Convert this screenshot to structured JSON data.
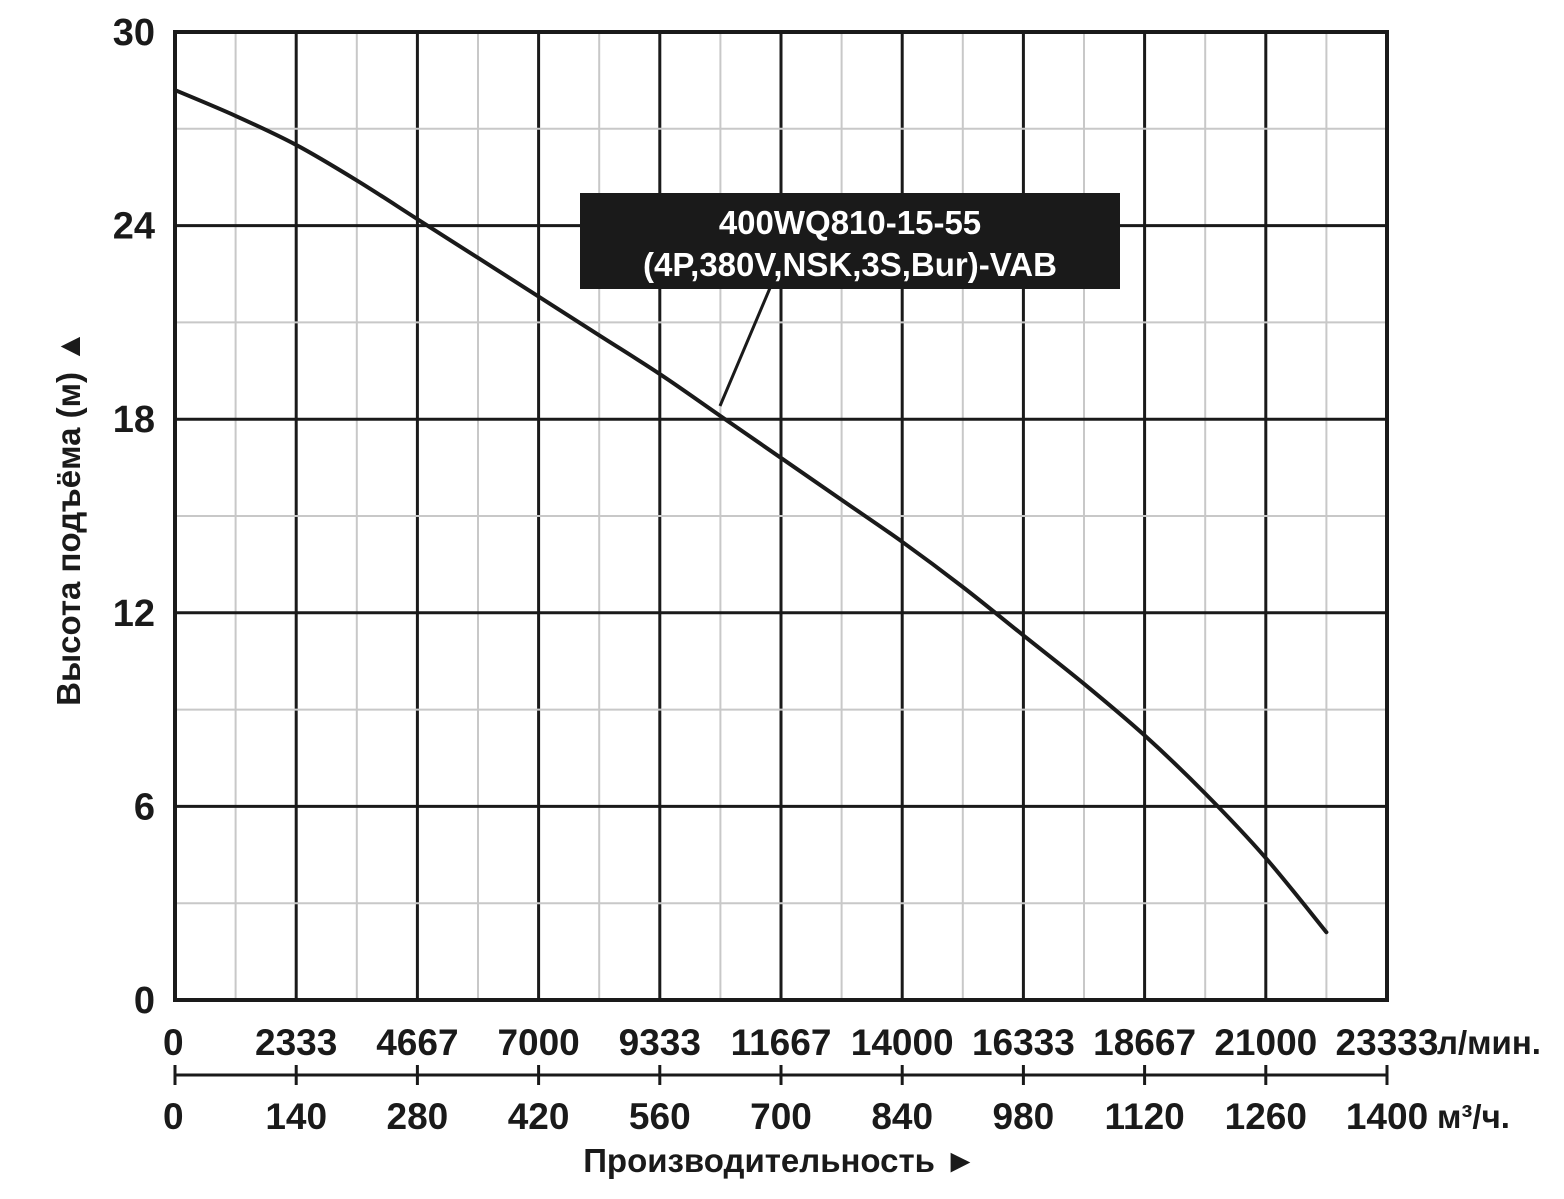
{
  "chart_data": {
    "type": "line",
    "ylabel": "Высота подъёма (м) ▲",
    "xlabel": "Производительность ►",
    "ylim": [
      0,
      30
    ],
    "yticks": [
      "0",
      "6",
      "12",
      "18",
      "24",
      "30"
    ],
    "x_axes": {
      "lpm": {
        "unit": "л/мин.",
        "ticks": [
          "0",
          "2333",
          "4667",
          "7000",
          "9333",
          "11667",
          "14000",
          "16333",
          "18667",
          "21000",
          "23333"
        ]
      },
      "m3h": {
        "unit": "м³/ч.",
        "ticks": [
          "0",
          "140",
          "280",
          "420",
          "560",
          "700",
          "840",
          "980",
          "1120",
          "1260",
          "1400"
        ]
      }
    },
    "xlim_m3h": [
      0,
      1400
    ],
    "grid": true,
    "series": [
      {
        "name": "400WQ810-15-55 (4P,380V,NSK,3S,Bur)-VAB",
        "x_m3h": [
          0,
          70,
          140,
          210,
          280,
          350,
          420,
          490,
          560,
          630,
          700,
          770,
          840,
          910,
          980,
          1050,
          1120,
          1190,
          1260,
          1330
        ],
        "y_m": [
          28.2,
          27.4,
          26.5,
          25.4,
          24.2,
          23.0,
          21.8,
          20.6,
          19.4,
          18.1,
          16.8,
          15.5,
          14.2,
          12.8,
          11.3,
          9.8,
          8.2,
          6.4,
          4.4,
          2.1
        ],
        "color": "#1a1a1a"
      }
    ],
    "annotations": [
      {
        "line1": "400WQ810-15-55",
        "line2": "(4P,380V,NSK,3S,Bur)-VAB"
      }
    ]
  }
}
